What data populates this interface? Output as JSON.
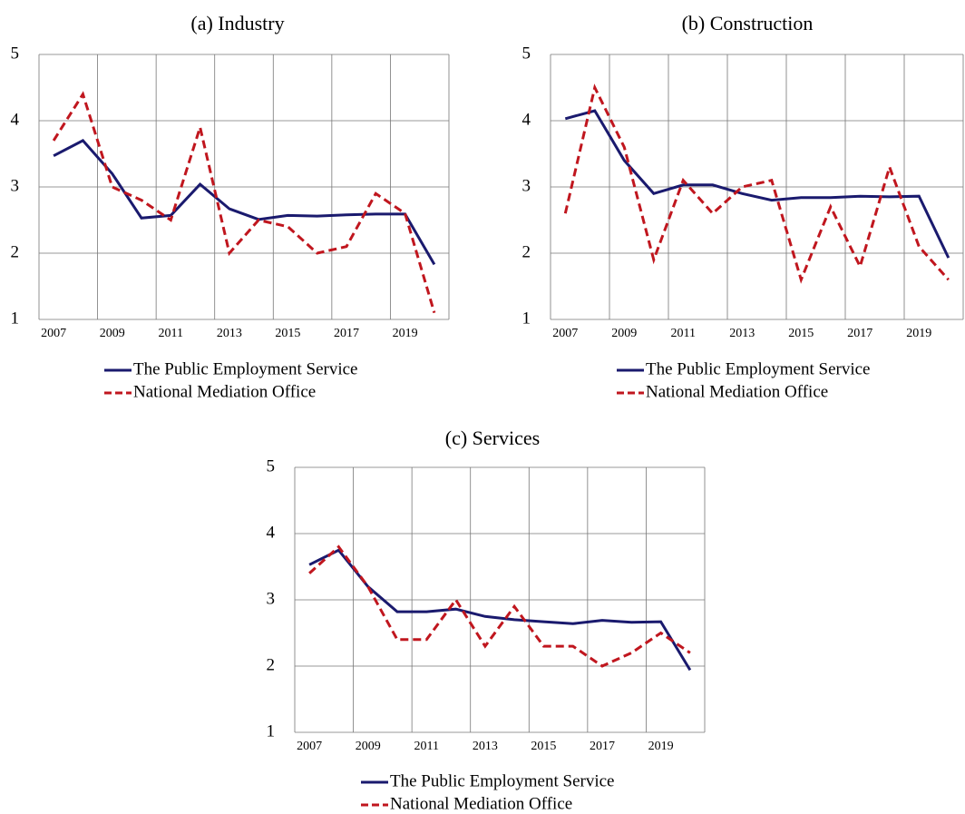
{
  "chart_data": [
    {
      "type": "line",
      "title": "(a) Industry",
      "categories": [
        "2007",
        null,
        "2009",
        null,
        "2011",
        null,
        "2013",
        null,
        "2015",
        null,
        "2017",
        null,
        "2019",
        null
      ],
      "series": [
        {
          "name": "The Public Employment Service",
          "color": "#1a1a6e",
          "line_style": "solid",
          "values": [
            3.47,
            3.7,
            3.2,
            2.53,
            2.57,
            3.04,
            2.67,
            2.51,
            2.57,
            2.56,
            2.58,
            2.59,
            2.59,
            1.83
          ]
        },
        {
          "name": "National Mediation Office",
          "color": "#c0161e",
          "line_style": "dashed",
          "values": [
            3.7,
            4.4,
            3.0,
            2.8,
            2.5,
            3.9,
            2.0,
            2.5,
            2.4,
            2.0,
            2.1,
            2.9,
            2.6,
            1.1
          ]
        }
      ],
      "ylim": [
        1,
        5
      ],
      "yticks": [
        1,
        2,
        3,
        4,
        5
      ],
      "grid": true
    },
    {
      "type": "line",
      "title": "(b) Construction",
      "categories": [
        "2007",
        null,
        "2009",
        null,
        "2011",
        null,
        "2013",
        null,
        "2015",
        null,
        "2017",
        null,
        "2019",
        null
      ],
      "series": [
        {
          "name": "The Public Employment Service",
          "color": "#1a1a6e",
          "line_style": "solid",
          "values": [
            4.03,
            4.15,
            3.4,
            2.9,
            3.03,
            3.03,
            2.9,
            2.8,
            2.84,
            2.84,
            2.86,
            2.85,
            2.86,
            1.93
          ]
        },
        {
          "name": "National Mediation Office",
          "color": "#c0161e",
          "line_style": "dashed",
          "values": [
            2.6,
            4.5,
            3.6,
            1.9,
            3.1,
            2.6,
            3.0,
            3.1,
            1.6,
            2.7,
            1.8,
            3.3,
            2.1,
            1.6
          ]
        }
      ],
      "ylim": [
        1,
        5
      ],
      "yticks": [
        1,
        2,
        3,
        4,
        5
      ],
      "grid": true
    },
    {
      "type": "line",
      "title": "(c) Services",
      "categories": [
        "2007",
        null,
        "2009",
        null,
        "2011",
        null,
        "2013",
        null,
        "2015",
        null,
        "2017",
        null,
        "2019",
        null
      ],
      "series": [
        {
          "name": "The Public Employment Service",
          "color": "#1a1a6e",
          "line_style": "solid",
          "values": [
            3.53,
            3.75,
            3.2,
            2.82,
            2.82,
            2.86,
            2.75,
            2.7,
            2.67,
            2.64,
            2.69,
            2.66,
            2.67,
            1.94
          ]
        },
        {
          "name": "National Mediation Office",
          "color": "#c0161e",
          "line_style": "dashed",
          "values": [
            3.4,
            3.8,
            3.2,
            2.4,
            2.4,
            3.0,
            2.3,
            2.9,
            2.3,
            2.3,
            2.0,
            2.2,
            2.5,
            2.2
          ]
        }
      ],
      "ylim": [
        1,
        5
      ],
      "yticks": [
        1,
        2,
        3,
        4,
        5
      ],
      "grid": true
    }
  ]
}
